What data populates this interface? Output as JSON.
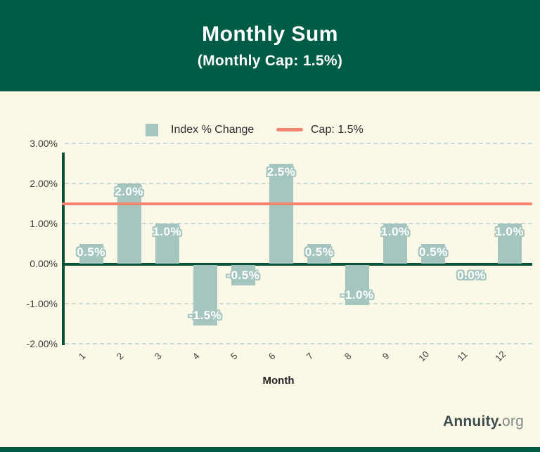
{
  "header": {
    "title": "Monthly Sum",
    "subtitle": "(Monthly Cap: 1.5%)"
  },
  "legend": {
    "series_label": "Index % Change",
    "cap_label": "Cap: 1.5%"
  },
  "chart_data": {
    "type": "bar",
    "title": "Monthly Sum",
    "subtitle": "(Monthly Cap: 1.5%)",
    "xlabel": "Month",
    "ylabel": "",
    "categories": [
      "1",
      "2",
      "3",
      "4",
      "5",
      "6",
      "7",
      "8",
      "9",
      "10",
      "11",
      "12"
    ],
    "values": [
      0.5,
      2.0,
      1.0,
      -1.5,
      -0.5,
      2.5,
      0.5,
      -1.0,
      1.0,
      0.5,
      0.0,
      1.0
    ],
    "point_labels": [
      "0.5%",
      "2.0%",
      "1.0%",
      "-1.5%",
      "-0.5%",
      "2.5%",
      "0.5%",
      "-1.0%",
      "1.0%",
      "0.5%",
      "0.0%",
      "1.0%"
    ],
    "series_name": "Index % Change",
    "cap_line": {
      "value": 1.5,
      "label": "Cap: 1.5%"
    },
    "ylim": [
      -2.0,
      3.0
    ],
    "yticks": [
      {
        "label": "3.00%",
        "value": 3
      },
      {
        "label": "2.00%",
        "value": 2
      },
      {
        "label": "1.00%",
        "value": 1
      },
      {
        "label": "0.00%",
        "value": 0
      },
      {
        "label": "-1.00%",
        "value": -1
      },
      {
        "label": "-2.00%",
        "value": -2
      }
    ],
    "grid": "horizontal-dashed",
    "legend_position": "top-center"
  },
  "xaxis_title": "Month",
  "branding": {
    "bold": "Annuity.",
    "light": "org"
  },
  "colors": {
    "header_green": "#005C45",
    "background_cream": "#FCF8E8",
    "bar_sage": "#A5C6BF",
    "cap_salmon": "#F48470",
    "axis_dark_green": "#0A5138",
    "grid_dash": "#C7DCD7",
    "text_dark": "#3C3C3C"
  }
}
